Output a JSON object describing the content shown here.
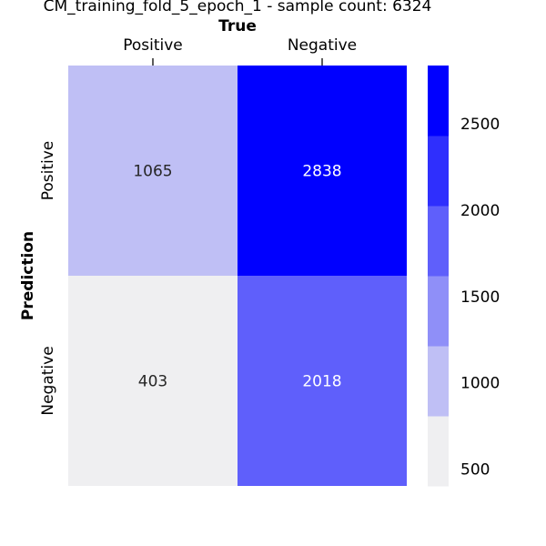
{
  "chart_data": {
    "type": "heatmap",
    "title": "CM_training_fold_5_epoch_1 - sample count: 6324",
    "xlabel": "True",
    "ylabel": "Prediction",
    "x_categories": [
      "Positive",
      "Negative"
    ],
    "y_categories": [
      "Positive",
      "Negative"
    ],
    "matrix": [
      [
        1065,
        2838
      ],
      [
        403,
        2018
      ]
    ],
    "colorbar": {
      "ticks": [
        500,
        1000,
        1500,
        2000,
        2500
      ],
      "vmin": 403,
      "vmax": 2838,
      "levels": 6
    },
    "colors": {
      "palette": [
        "#efeff1",
        "#bfbff5",
        "#8f8ff8",
        "#5f5ffb",
        "#2f2ffd",
        "#0000ff"
      ],
      "text_dark": "#262626",
      "text_light": "#ffffff"
    }
  }
}
